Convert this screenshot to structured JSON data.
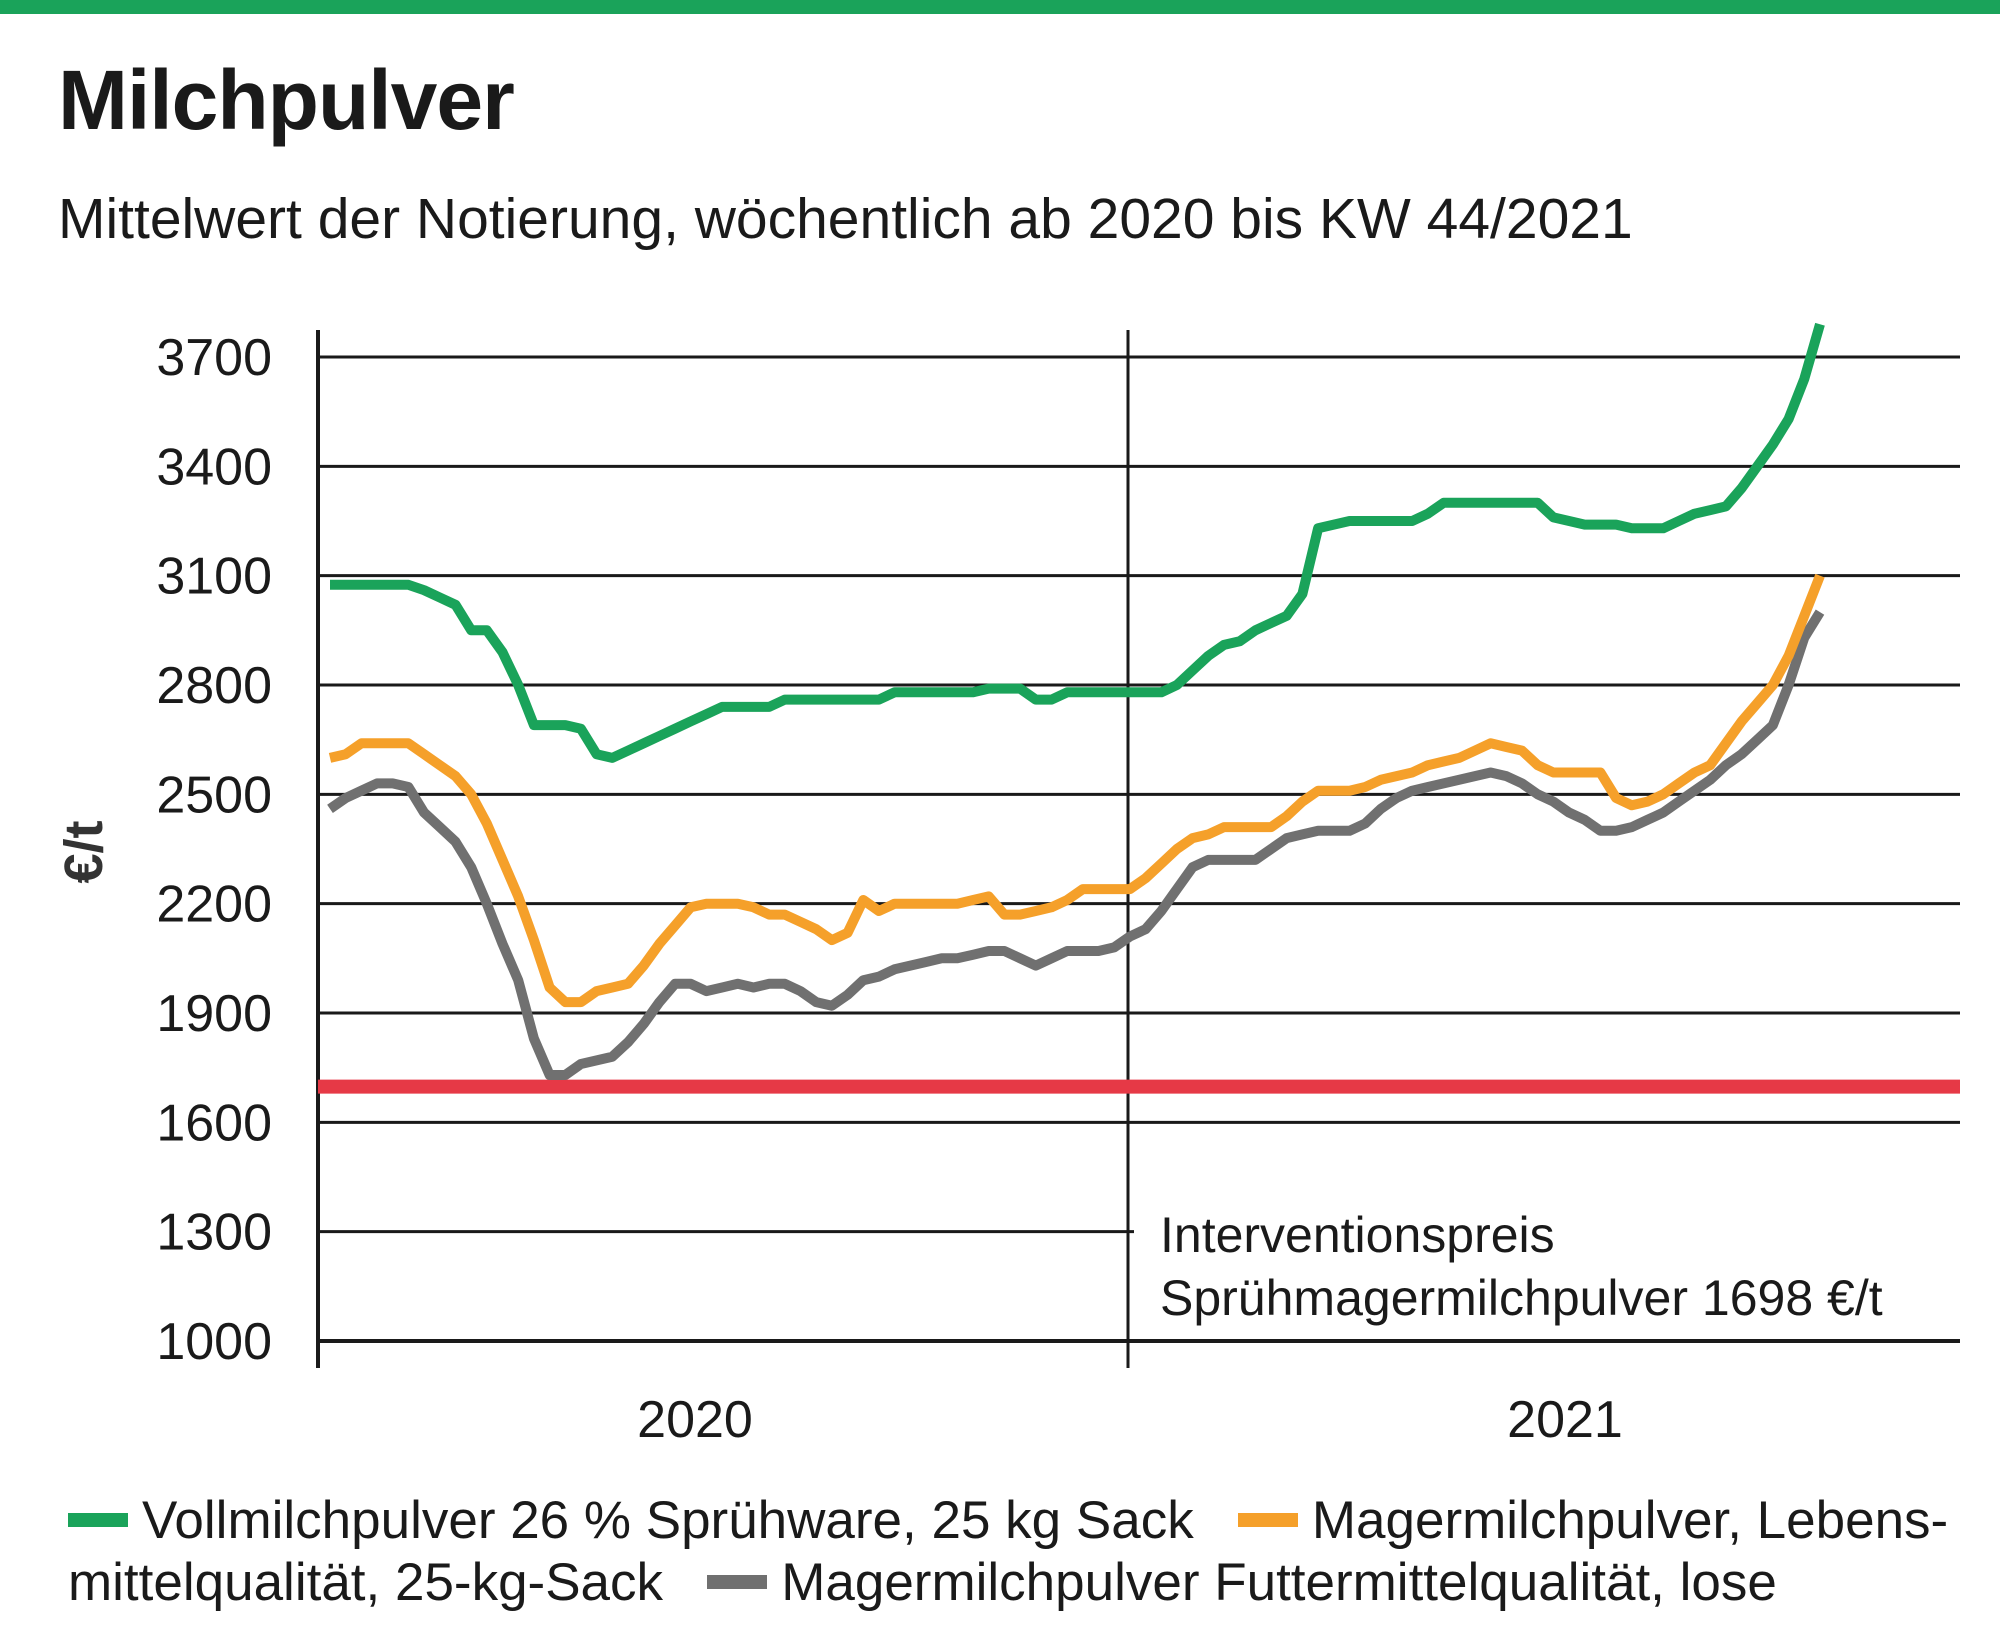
{
  "title": "Milchpulver",
  "subtitle": "Mittelwert der Notierung, wöchentlich ab 2020 bis KW 44/2021",
  "chart_data": {
    "type": "line",
    "ylabel": "€/t",
    "ylim": [
      1000,
      3700
    ],
    "yticks": [
      3700,
      3400,
      3100,
      2800,
      2500,
      2200,
      1900,
      1600,
      1300,
      1000
    ],
    "xlabels": [
      "2020",
      "2021"
    ],
    "weeks_total": 96,
    "grid": true,
    "series": [
      {
        "name": "Vollmilchpulver 26 % Sprühware, 25 kg Sack",
        "color": "#1aa35a",
        "values": [
          3075,
          3075,
          3075,
          3075,
          3075,
          3075,
          3060,
          3040,
          3020,
          2950,
          2950,
          2890,
          2800,
          2690,
          2690,
          2690,
          2680,
          2610,
          2600,
          2620,
          2640,
          2660,
          2680,
          2700,
          2720,
          2740,
          2740,
          2740,
          2740,
          2760,
          2760,
          2760,
          2760,
          2760,
          2760,
          2760,
          2780,
          2780,
          2780,
          2780,
          2780,
          2780,
          2790,
          2790,
          2790,
          2760,
          2760,
          2780,
          2780,
          2780,
          2780,
          2780,
          2780,
          2780,
          2800,
          2840,
          2880,
          2910,
          2920,
          2950,
          2970,
          2990,
          3050,
          3230,
          3240,
          3250,
          3250,
          3250,
          3250,
          3250,
          3270,
          3300,
          3300,
          3300,
          3300,
          3300,
          3300,
          3300,
          3260,
          3250,
          3240,
          3240,
          3240,
          3230,
          3230,
          3230,
          3250,
          3270,
          3280,
          3290,
          3340,
          3400,
          3460,
          3530,
          3640,
          3790
        ]
      },
      {
        "name": "Magermilchpulver, Lebensmittelqualität, 25-kg-Sack",
        "color": "#f5a02a",
        "values": [
          2600,
          2610,
          2640,
          2640,
          2640,
          2640,
          2610,
          2580,
          2550,
          2500,
          2420,
          2320,
          2220,
          2100,
          1970,
          1930,
          1930,
          1960,
          1970,
          1980,
          2030,
          2090,
          2140,
          2190,
          2200,
          2200,
          2200,
          2190,
          2170,
          2170,
          2150,
          2130,
          2100,
          2120,
          2210,
          2180,
          2200,
          2200,
          2200,
          2200,
          2200,
          2210,
          2220,
          2170,
          2170,
          2180,
          2190,
          2210,
          2240,
          2240,
          2240,
          2240,
          2270,
          2310,
          2350,
          2380,
          2390,
          2410,
          2410,
          2410,
          2410,
          2440,
          2480,
          2510,
          2510,
          2510,
          2520,
          2540,
          2550,
          2560,
          2580,
          2590,
          2600,
          2620,
          2640,
          2630,
          2620,
          2580,
          2560,
          2560,
          2560,
          2560,
          2490,
          2470,
          2480,
          2500,
          2530,
          2560,
          2580,
          2640,
          2700,
          2750,
          2800,
          2880,
          2990,
          3100
        ]
      },
      {
        "name": "Magermilchpulver Futtermittelqualität, lose",
        "color": "#707070",
        "values": [
          2460,
          2490,
          2510,
          2530,
          2530,
          2520,
          2450,
          2410,
          2370,
          2300,
          2200,
          2090,
          1990,
          1830,
          1730,
          1730,
          1760,
          1770,
          1780,
          1820,
          1870,
          1930,
          1980,
          1980,
          1960,
          1970,
          1980,
          1970,
          1980,
          1980,
          1960,
          1930,
          1920,
          1950,
          1990,
          2000,
          2020,
          2030,
          2040,
          2050,
          2050,
          2060,
          2070,
          2070,
          2050,
          2030,
          2050,
          2070,
          2070,
          2070,
          2080,
          2110,
          2130,
          2180,
          2240,
          2300,
          2320,
          2320,
          2320,
          2320,
          2350,
          2380,
          2390,
          2400,
          2400,
          2400,
          2420,
          2460,
          2490,
          2510,
          2520,
          2530,
          2540,
          2550,
          2560,
          2550,
          2530,
          2500,
          2480,
          2450,
          2430,
          2400,
          2400,
          2410,
          2430,
          2450,
          2480,
          2510,
          2540,
          2580,
          2610,
          2650,
          2690,
          2800,
          2930,
          3000
        ]
      }
    ],
    "reference_line": {
      "value": 1698,
      "color": "#e63946"
    },
    "annotation": [
      "Interventionspreis",
      "Sprühmagermilchpulver 1698 €/t"
    ]
  },
  "legend": {
    "entry1": "Vollmilchpulver 26 % Sprühware, 25 kg Sack",
    "entry2": "Magermilchpulver, Lebens- mittelqualität, 25-kg-Sack",
    "entry3": "Magermilchpulver Futtermittelqualität, lose",
    "colors": [
      "#1aa35a",
      "#f5a02a",
      "#707070"
    ]
  }
}
